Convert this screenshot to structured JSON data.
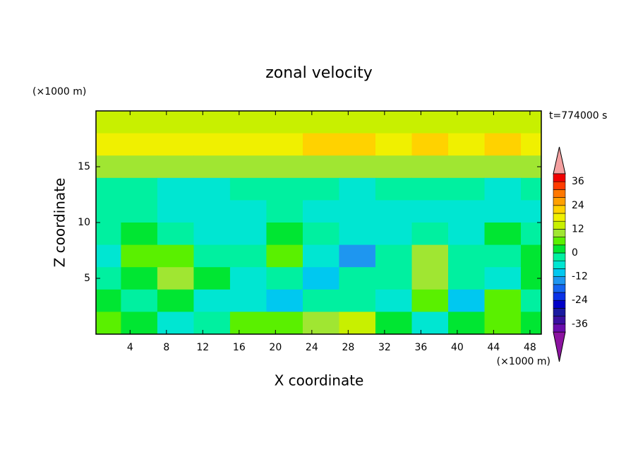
{
  "chart_data": {
    "type": "contour",
    "title": "zonal velocity",
    "time_label": "t=774000 s",
    "x_label": "X coordinate",
    "y_label": "Z coordinate",
    "x_unit": "(×1000 m)",
    "y_unit": "(×1000 m)",
    "xlim": [
      0.25,
      49.25
    ],
    "ylim": [
      0,
      20
    ],
    "xticks": [
      4,
      8,
      12,
      16,
      20,
      24,
      28,
      32,
      36,
      40,
      44,
      48
    ],
    "yticks": [
      5,
      10,
      15
    ],
    "x": [
      1,
      5,
      9,
      13,
      17,
      21,
      25,
      29,
      33,
      37,
      41,
      45,
      49
    ],
    "y": [
      19,
      17,
      15,
      13,
      11,
      9,
      7,
      5,
      3,
      1
    ],
    "z": [
      [
        13,
        14,
        14,
        15,
        14,
        14,
        15,
        15,
        14,
        15,
        14,
        14,
        14
      ],
      [
        18,
        18,
        18,
        17,
        18,
        19,
        20,
        20,
        19,
        21,
        19,
        22,
        19
      ],
      [
        10,
        11,
        10,
        10,
        10,
        11,
        11,
        10,
        11,
        10,
        11,
        10,
        11
      ],
      [
        -3,
        -4,
        -5,
        -5,
        -4,
        -3,
        -4,
        -5,
        -4,
        -3,
        -4,
        -5,
        -4
      ],
      [
        -2,
        -4,
        -5,
        -6,
        -5,
        -3,
        -6,
        -8,
        -6,
        -5,
        -6,
        -5,
        -6
      ],
      [
        -4,
        2,
        -3,
        -5,
        -6,
        3,
        -2,
        -8,
        -6,
        -2,
        -6,
        3,
        -2
      ],
      [
        -6,
        6,
        7,
        -2,
        -4,
        5,
        -8,
        -14,
        -4,
        8,
        -3,
        -4,
        2
      ],
      [
        -4,
        2,
        9,
        2,
        -6,
        -3,
        -9,
        -4,
        -2,
        9,
        -3,
        -5,
        2
      ],
      [
        2,
        -2,
        3,
        -5,
        -6,
        -10,
        -2,
        -4,
        -5,
        5,
        -10,
        6,
        -2
      ],
      [
        4,
        0,
        -8,
        -2,
        4,
        5,
        10,
        12,
        2,
        -8,
        1,
        4,
        0
      ]
    ],
    "colorbar": {
      "levels": [
        -40,
        -36,
        -32,
        -28,
        -24,
        -20,
        -16,
        -12,
        -8,
        -4,
        0,
        4,
        8,
        12,
        16,
        20,
        24,
        28,
        32,
        36,
        40
      ],
      "colors": [
        "#8c14a0",
        "#6a0dad",
        "#3a10a0",
        "#1a1aa0",
        "#0000c8",
        "#0a32e6",
        "#1464f0",
        "#1e96f0",
        "#00c8f0",
        "#00e6d2",
        "#00f0a0",
        "#00e632",
        "#5af000",
        "#a0e632",
        "#c8f000",
        "#f0f000",
        "#ffd200",
        "#ffa000",
        "#ff7800",
        "#ff3c00",
        "#f00000",
        "#f4a0a0"
      ],
      "ticks": [
        -36,
        -24,
        -12,
        0,
        12,
        24,
        36
      ]
    }
  }
}
